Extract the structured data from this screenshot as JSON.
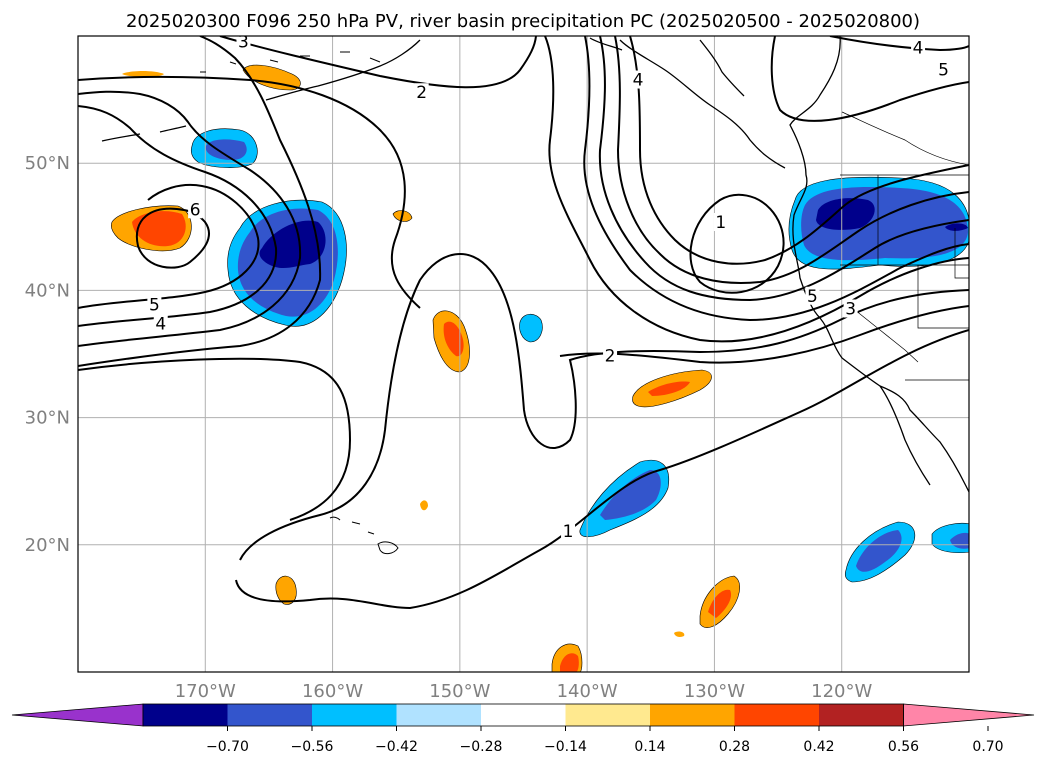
{
  "title": "2025020300 F096 250 hPa PV, river basin precipitation PC (2025020500 - 2025020800)",
  "map": {
    "lon_range": [
      -180,
      -110
    ],
    "lat_range": [
      10,
      60
    ],
    "gridlines": true,
    "lon_ticks": [
      {
        "value": -170,
        "label": "170°W"
      },
      {
        "value": -160,
        "label": "160°W"
      },
      {
        "value": -150,
        "label": "150°W"
      },
      {
        "value": -140,
        "label": "140°W"
      },
      {
        "value": -130,
        "label": "130°W"
      },
      {
        "value": -120,
        "label": "120°W"
      }
    ],
    "lat_ticks": [
      {
        "value": 50,
        "label": "50°N"
      },
      {
        "value": 40,
        "label": "40°N"
      },
      {
        "value": 30,
        "label": "30°N"
      },
      {
        "value": 20,
        "label": "20°N"
      }
    ],
    "contour_labels": [
      {
        "text": "3",
        "lon": -167,
        "lat": 59.5
      },
      {
        "text": "2",
        "lon": -153,
        "lat": 55.5
      },
      {
        "text": "4",
        "lon": -136,
        "lat": 56.5
      },
      {
        "text": "4",
        "lon": -114,
        "lat": 59
      },
      {
        "text": "5",
        "lon": -112,
        "lat": 57.3
      },
      {
        "text": "6",
        "lon": -170.8,
        "lat": 46.3
      },
      {
        "text": "5",
        "lon": -174,
        "lat": 38.8
      },
      {
        "text": "4",
        "lon": -173.5,
        "lat": 37.3
      },
      {
        "text": "1",
        "lon": -129.5,
        "lat": 45.3
      },
      {
        "text": "5",
        "lon": -122.3,
        "lat": 39.5
      },
      {
        "text": "3",
        "lon": -119.3,
        "lat": 38.5
      },
      {
        "text": "2",
        "lon": -138.2,
        "lat": 34.8
      },
      {
        "text": "1",
        "lon": -141.5,
        "lat": 21.0
      }
    ]
  },
  "colorbar": {
    "tick_labels": [
      "−0.70",
      "−0.56",
      "−0.42",
      "−0.28",
      "−0.14",
      "0.14",
      "0.28",
      "0.42",
      "0.56",
      "0.70"
    ],
    "colors": [
      "#9932cc",
      "#00008b",
      "#3355cc",
      "#00bfff",
      "#b0e2ff",
      "#ffffff",
      "#ffe98f",
      "#ffa500",
      "#ff4500",
      "#b22222",
      "#ff85a8"
    ]
  },
  "colors": {
    "dark_blue": "#00008b",
    "mid_blue": "#3355cc",
    "cyan": "#00bfff",
    "yellow": "#ffe98f",
    "orange": "#ffa500",
    "red_orange": "#ff4500"
  }
}
